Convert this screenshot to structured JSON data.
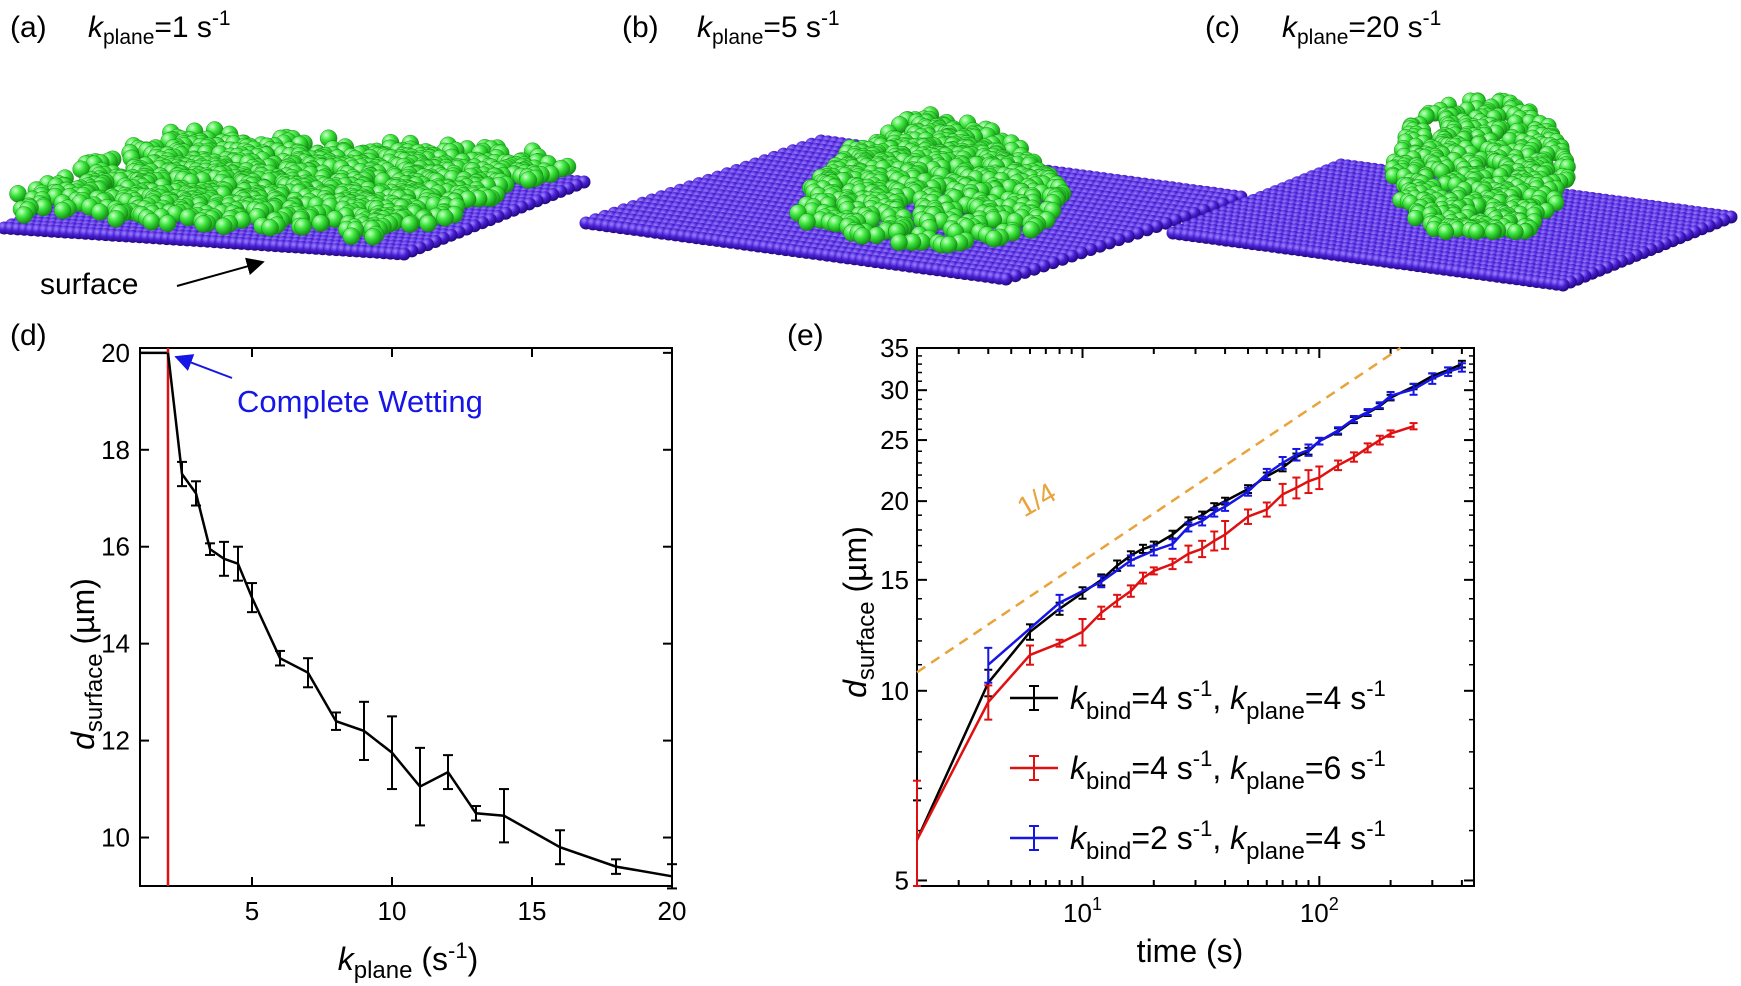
{
  "panels": {
    "a": {
      "letter": "(a)",
      "k": "k",
      "sub": "plane",
      "value": "=1 s",
      "sup": "-1"
    },
    "b": {
      "letter": "(b)",
      "k": "k",
      "sub": "plane",
      "value": "=5 s",
      "sup": "-1"
    },
    "c": {
      "letter": "(c)",
      "k": "k",
      "sub": "plane",
      "value": "=20 s",
      "sup": "-1"
    },
    "d": {
      "letter": "(d)"
    },
    "e": {
      "letter": "(e)"
    }
  },
  "annotations": {
    "surface_label": "surface",
    "complete_wetting": "Complete Wetting",
    "slope_label": "1/4"
  },
  "colors": {
    "droplet": "#3ee83e",
    "surface": "#4a1fd6",
    "black": "#000000",
    "red": "#e01010",
    "blue": "#1515e6",
    "orange": "#e8a33a"
  },
  "chart_data": [
    {
      "type": "line",
      "title": "",
      "xlabel": {
        "main": "k",
        "sub": "plane",
        "unit": " (s",
        "sup": "-1",
        "end": ")"
      },
      "ylabel": {
        "main": "d",
        "sub": "surface",
        "unit": " (µm)"
      },
      "xlim": [
        1,
        20
      ],
      "ylim": [
        9,
        20.1
      ],
      "xticks": [
        5,
        10,
        15,
        20
      ],
      "yticks": [
        10,
        12,
        14,
        16,
        18,
        20
      ],
      "vline_x": 2,
      "series": [
        {
          "name": "d_surface",
          "x": [
            2,
            2.5,
            3,
            3.5,
            4,
            4.5,
            5,
            6,
            7,
            8,
            9,
            10,
            11,
            12,
            13,
            14,
            16,
            18,
            20
          ],
          "y": [
            20,
            17.5,
            17.1,
            15.95,
            15.75,
            15.65,
            14.95,
            13.7,
            13.4,
            12.4,
            12.2,
            11.75,
            11.05,
            11.35,
            10.5,
            10.45,
            9.8,
            9.4,
            9.2
          ],
          "err": [
            0,
            0.25,
            0.25,
            0.12,
            0.35,
            0.35,
            0.3,
            0.15,
            0.3,
            0.18,
            0.6,
            0.75,
            0.8,
            0.35,
            0.15,
            0.55,
            0.35,
            0.15,
            0.25
          ]
        }
      ]
    },
    {
      "type": "line",
      "title": "",
      "xscale": "log",
      "yscale": "log",
      "xlabel": "time (s)",
      "ylabel": {
        "main": "d",
        "sub": "surface",
        "unit": " (µm)"
      },
      "xlim": [
        2,
        450
      ],
      "ylim": [
        4.9,
        35
      ],
      "xticks": [
        {
          "base": "10",
          "exp": "1",
          "value": 10
        },
        {
          "base": "10",
          "exp": "2",
          "value": 100
        }
      ],
      "yticks": [
        5,
        10,
        15,
        20,
        25,
        30,
        35
      ],
      "guide_line": {
        "x": [
          2,
          220
        ],
        "y": [
          10.7,
          35
        ],
        "slope": "1/4"
      },
      "legend": [
        {
          "k1": "k",
          "s1": "bind",
          "v1": "=4 s",
          "e1": "-1",
          "sep": ", ",
          "k2": "k",
          "s2": "plane",
          "v2": "=4 s",
          "e2": "-1",
          "color": "#000000"
        },
        {
          "k1": "k",
          "s1": "bind",
          "v1": "=4 s",
          "e1": "-1",
          "sep": ", ",
          "k2": "k",
          "s2": "plane",
          "v2": "=6 s",
          "e2": "-1",
          "color": "#e01010"
        },
        {
          "k1": "k",
          "s1": "bind",
          "v1": "=2 s",
          "e1": "-1",
          "sep": ", ",
          "k2": "k",
          "s2": "plane",
          "v2": "=4 s",
          "e2": "-1",
          "color": "#1515e6"
        }
      ],
      "legend_position": "bottom-right",
      "series": [
        {
          "name": "kbind=4, kplane=4",
          "color": "#000000",
          "x": [
            2,
            4,
            6,
            8,
            10,
            12,
            14,
            16,
            18,
            20,
            24,
            28,
            32,
            36,
            40,
            50,
            60,
            70,
            80,
            90,
            100,
            120,
            140,
            160,
            180,
            200,
            250,
            300,
            350,
            400
          ],
          "y": [
            5.8,
            10.3,
            12.4,
            13.5,
            14.3,
            15.0,
            15.8,
            16.4,
            16.8,
            17.0,
            17.7,
            18.6,
            19.0,
            19.6,
            20.0,
            20.9,
            21.9,
            22.6,
            23.5,
            24.0,
            24.9,
            25.8,
            26.9,
            27.6,
            28.3,
            29.2,
            30.4,
            31.6,
            32.3,
            33.0
          ],
          "err": [
            0.9,
            0.5,
            0.35,
            0.3,
            0.3,
            0.3,
            0.3,
            0.25,
            0.25,
            0.25,
            0.25,
            0.25,
            0.25,
            0.25,
            0.25,
            0.3,
            0.3,
            0.3,
            0.3,
            0.3,
            0.3,
            0.3,
            0.3,
            0.3,
            0.3,
            0.3,
            0.3,
            0.3,
            0.3,
            0.4
          ]
        },
        {
          "name": "kbind=4, kplane=6",
          "color": "#e01010",
          "x": [
            2,
            4,
            6,
            8,
            10,
            12,
            14,
            16,
            18,
            20,
            24,
            28,
            32,
            36,
            40,
            50,
            60,
            70,
            80,
            90,
            100,
            120,
            140,
            160,
            180,
            200,
            250
          ],
          "y": [
            5.8,
            9.6,
            11.4,
            11.9,
            12.4,
            13.3,
            13.9,
            14.4,
            15.1,
            15.5,
            15.9,
            16.5,
            16.8,
            17.3,
            17.7,
            18.9,
            19.4,
            20.5,
            21.0,
            21.5,
            21.8,
            22.8,
            23.5,
            24.3,
            25.0,
            25.6,
            26.3
          ],
          "err": [
            1.4,
            0.6,
            0.4,
            0.15,
            0.6,
            0.3,
            0.3,
            0.3,
            0.3,
            0.2,
            0.3,
            0.5,
            0.5,
            0.6,
            0.9,
            0.5,
            0.5,
            0.8,
            0.8,
            0.9,
            0.9,
            0.4,
            0.4,
            0.4,
            0.4,
            0.3,
            0.3
          ]
        },
        {
          "name": "kbind=2, kplane=4",
          "color": "#1515e6",
          "x": [
            4,
            8,
            12,
            16,
            20,
            24,
            28,
            32,
            36,
            40,
            50,
            60,
            70,
            80,
            90,
            100,
            120,
            140,
            160,
            180,
            200,
            250,
            300,
            350,
            400
          ],
          "y": [
            11.0,
            13.8,
            14.9,
            16.1,
            16.7,
            17.1,
            18.2,
            18.6,
            19.2,
            19.6,
            20.7,
            22.1,
            23.0,
            23.7,
            24.1,
            24.9,
            25.9,
            27.0,
            27.7,
            28.4,
            29.4,
            30.1,
            31.3,
            32.1,
            32.6
          ],
          "err": [
            0.7,
            0.4,
            0.3,
            0.3,
            0.3,
            0.3,
            0.3,
            0.3,
            0.3,
            0.3,
            0.3,
            0.4,
            0.5,
            0.5,
            0.5,
            0.3,
            0.3,
            0.3,
            0.3,
            0.3,
            0.4,
            0.6,
            0.6,
            0.5,
            0.5
          ]
        }
      ]
    }
  ]
}
